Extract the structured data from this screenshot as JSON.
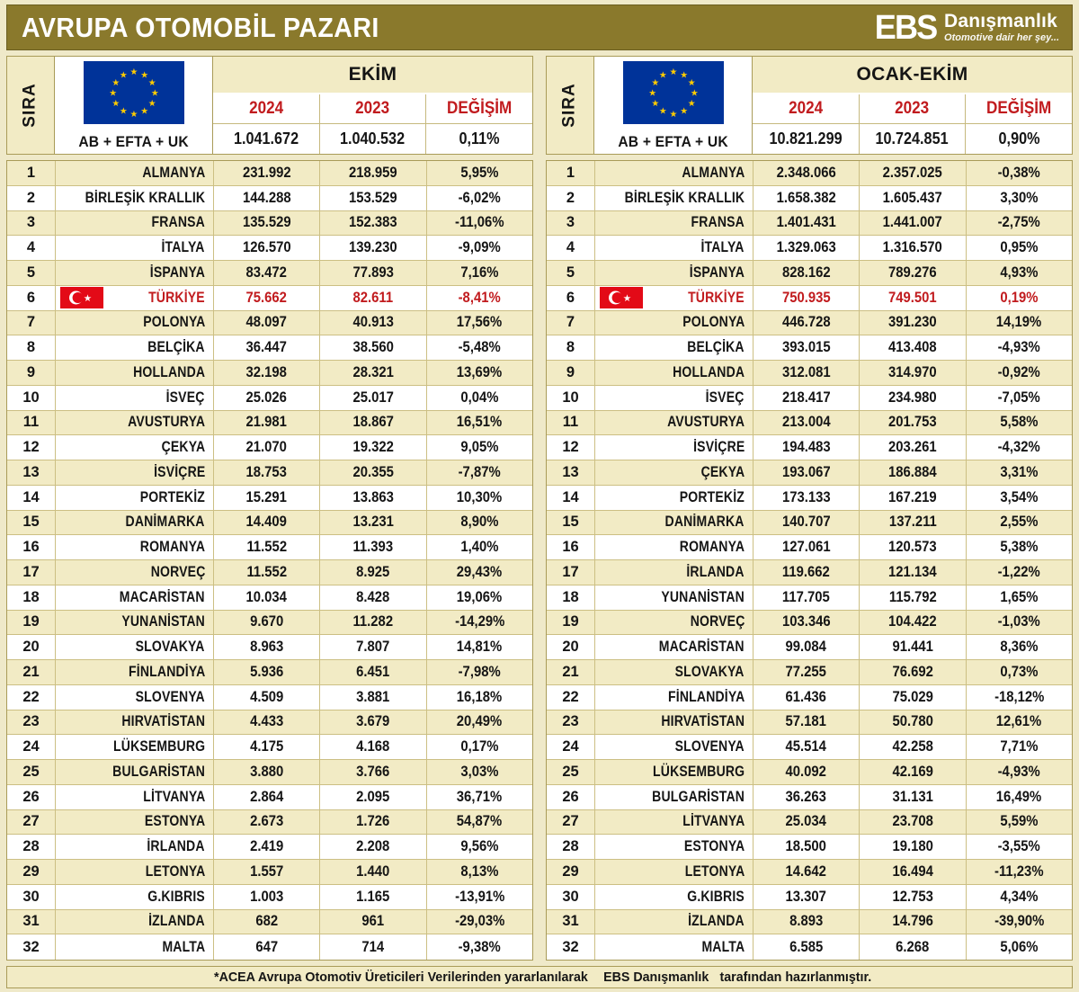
{
  "title": "AVRUPA OTOMOBİL PAZARI",
  "logo": {
    "ebs": "EBS",
    "name": "Danışmanlık",
    "tagline": "Otomotive dair her şey..."
  },
  "colors": {
    "olive": "#8A792C",
    "cream": "#F2EBC5",
    "highlight_red": "#C11B1E",
    "eu_blue": "#003399",
    "turkey_red": "#E30A17"
  },
  "footer": {
    "prefix": "*ACEA Avrupa Otomotiv Üreticileri Verilerinden yararlanılarak ",
    "brand": "EBS Danışmanlık",
    "suffix": " tarafından hazırlanmıştır."
  },
  "chart_data": [
    {
      "type": "table",
      "period_label": "EKİM",
      "sira_label": "SIRA",
      "region_label": "AB + EFTA + UK",
      "col_2024": "2024",
      "col_2023": "2023",
      "col_change": "DEĞİŞİM",
      "totals": {
        "v2024": "1.041.672",
        "v2023": "1.040.532",
        "change": "0,11%"
      },
      "rows": [
        {
          "rank": "1",
          "country": "ALMANYA",
          "v2024": "231.992",
          "v2023": "218.959",
          "change": "5,95%"
        },
        {
          "rank": "2",
          "country": "BİRLEŞİK KRALLIK",
          "v2024": "144.288",
          "v2023": "153.529",
          "change": "-6,02%"
        },
        {
          "rank": "3",
          "country": "FRANSA",
          "v2024": "135.529",
          "v2023": "152.383",
          "change": "-11,06%"
        },
        {
          "rank": "4",
          "country": "İTALYA",
          "v2024": "126.570",
          "v2023": "139.230",
          "change": "-9,09%"
        },
        {
          "rank": "5",
          "country": "İSPANYA",
          "v2024": "83.472",
          "v2023": "77.893",
          "change": "7,16%"
        },
        {
          "rank": "6",
          "country": "TÜRKİYE",
          "v2024": "75.662",
          "v2023": "82.611",
          "change": "-8,41%",
          "highlight": true
        },
        {
          "rank": "7",
          "country": "POLONYA",
          "v2024": "48.097",
          "v2023": "40.913",
          "change": "17,56%"
        },
        {
          "rank": "8",
          "country": "BELÇİKA",
          "v2024": "36.447",
          "v2023": "38.560",
          "change": "-5,48%"
        },
        {
          "rank": "9",
          "country": "HOLLANDA",
          "v2024": "32.198",
          "v2023": "28.321",
          "change": "13,69%"
        },
        {
          "rank": "10",
          "country": "İSVEÇ",
          "v2024": "25.026",
          "v2023": "25.017",
          "change": "0,04%"
        },
        {
          "rank": "11",
          "country": "AVUSTURYA",
          "v2024": "21.981",
          "v2023": "18.867",
          "change": "16,51%"
        },
        {
          "rank": "12",
          "country": "ÇEKYA",
          "v2024": "21.070",
          "v2023": "19.322",
          "change": "9,05%"
        },
        {
          "rank": "13",
          "country": "İSVİÇRE",
          "v2024": "18.753",
          "v2023": "20.355",
          "change": "-7,87%"
        },
        {
          "rank": "14",
          "country": "PORTEKİZ",
          "v2024": "15.291",
          "v2023": "13.863",
          "change": "10,30%"
        },
        {
          "rank": "15",
          "country": "DANİMARKA",
          "v2024": "14.409",
          "v2023": "13.231",
          "change": "8,90%"
        },
        {
          "rank": "16",
          "country": "ROMANYA",
          "v2024": "11.552",
          "v2023": "11.393",
          "change": "1,40%"
        },
        {
          "rank": "17",
          "country": "NORVEÇ",
          "v2024": "11.552",
          "v2023": "8.925",
          "change": "29,43%"
        },
        {
          "rank": "18",
          "country": "MACARİSTAN",
          "v2024": "10.034",
          "v2023": "8.428",
          "change": "19,06%"
        },
        {
          "rank": "19",
          "country": "YUNANİSTAN",
          "v2024": "9.670",
          "v2023": "11.282",
          "change": "-14,29%"
        },
        {
          "rank": "20",
          "country": "SLOVAKYA",
          "v2024": "8.963",
          "v2023": "7.807",
          "change": "14,81%"
        },
        {
          "rank": "21",
          "country": "FİNLANDİYA",
          "v2024": "5.936",
          "v2023": "6.451",
          "change": "-7,98%"
        },
        {
          "rank": "22",
          "country": "SLOVENYA",
          "v2024": "4.509",
          "v2023": "3.881",
          "change": "16,18%"
        },
        {
          "rank": "23",
          "country": "HIRVATİSTAN",
          "v2024": "4.433",
          "v2023": "3.679",
          "change": "20,49%"
        },
        {
          "rank": "24",
          "country": "LÜKSEMBURG",
          "v2024": "4.175",
          "v2023": "4.168",
          "change": "0,17%"
        },
        {
          "rank": "25",
          "country": "BULGARİSTAN",
          "v2024": "3.880",
          "v2023": "3.766",
          "change": "3,03%"
        },
        {
          "rank": "26",
          "country": "LİTVANYA",
          "v2024": "2.864",
          "v2023": "2.095",
          "change": "36,71%"
        },
        {
          "rank": "27",
          "country": "ESTONYA",
          "v2024": "2.673",
          "v2023": "1.726",
          "change": "54,87%"
        },
        {
          "rank": "28",
          "country": "İRLANDA",
          "v2024": "2.419",
          "v2023": "2.208",
          "change": "9,56%"
        },
        {
          "rank": "29",
          "country": "LETONYA",
          "v2024": "1.557",
          "v2023": "1.440",
          "change": "8,13%"
        },
        {
          "rank": "30",
          "country": "G.KIBRIS",
          "v2024": "1.003",
          "v2023": "1.165",
          "change": "-13,91%"
        },
        {
          "rank": "31",
          "country": "İZLANDA",
          "v2024": "682",
          "v2023": "961",
          "change": "-29,03%"
        },
        {
          "rank": "32",
          "country": "MALTA",
          "v2024": "647",
          "v2023": "714",
          "change": "-9,38%"
        }
      ]
    },
    {
      "type": "table",
      "period_label": "OCAK-EKİM",
      "sira_label": "SIRA",
      "region_label": "AB + EFTA + UK",
      "col_2024": "2024",
      "col_2023": "2023",
      "col_change": "DEĞİŞİM",
      "totals": {
        "v2024": "10.821.299",
        "v2023": "10.724.851",
        "change": "0,90%"
      },
      "rows": [
        {
          "rank": "1",
          "country": "ALMANYA",
          "v2024": "2.348.066",
          "v2023": "2.357.025",
          "change": "-0,38%"
        },
        {
          "rank": "2",
          "country": "BİRLEŞİK KRALLIK",
          "v2024": "1.658.382",
          "v2023": "1.605.437",
          "change": "3,30%"
        },
        {
          "rank": "3",
          "country": "FRANSA",
          "v2024": "1.401.431",
          "v2023": "1.441.007",
          "change": "-2,75%"
        },
        {
          "rank": "4",
          "country": "İTALYA",
          "v2024": "1.329.063",
          "v2023": "1.316.570",
          "change": "0,95%"
        },
        {
          "rank": "5",
          "country": "İSPANYA",
          "v2024": "828.162",
          "v2023": "789.276",
          "change": "4,93%"
        },
        {
          "rank": "6",
          "country": "TÜRKİYE",
          "v2024": "750.935",
          "v2023": "749.501",
          "change": "0,19%",
          "highlight": true
        },
        {
          "rank": "7",
          "country": "POLONYA",
          "v2024": "446.728",
          "v2023": "391.230",
          "change": "14,19%"
        },
        {
          "rank": "8",
          "country": "BELÇİKA",
          "v2024": "393.015",
          "v2023": "413.408",
          "change": "-4,93%"
        },
        {
          "rank": "9",
          "country": "HOLLANDA",
          "v2024": "312.081",
          "v2023": "314.970",
          "change": "-0,92%"
        },
        {
          "rank": "10",
          "country": "İSVEÇ",
          "v2024": "218.417",
          "v2023": "234.980",
          "change": "-7,05%"
        },
        {
          "rank": "11",
          "country": "AVUSTURYA",
          "v2024": "213.004",
          "v2023": "201.753",
          "change": "5,58%"
        },
        {
          "rank": "12",
          "country": "İSVİÇRE",
          "v2024": "194.483",
          "v2023": "203.261",
          "change": "-4,32%"
        },
        {
          "rank": "13",
          "country": "ÇEKYA",
          "v2024": "193.067",
          "v2023": "186.884",
          "change": "3,31%"
        },
        {
          "rank": "14",
          "country": "PORTEKİZ",
          "v2024": "173.133",
          "v2023": "167.219",
          "change": "3,54%"
        },
        {
          "rank": "15",
          "country": "DANİMARKA",
          "v2024": "140.707",
          "v2023": "137.211",
          "change": "2,55%"
        },
        {
          "rank": "16",
          "country": "ROMANYA",
          "v2024": "127.061",
          "v2023": "120.573",
          "change": "5,38%"
        },
        {
          "rank": "17",
          "country": "İRLANDA",
          "v2024": "119.662",
          "v2023": "121.134",
          "change": "-1,22%"
        },
        {
          "rank": "18",
          "country": "YUNANİSTAN",
          "v2024": "117.705",
          "v2023": "115.792",
          "change": "1,65%"
        },
        {
          "rank": "19",
          "country": "NORVEÇ",
          "v2024": "103.346",
          "v2023": "104.422",
          "change": "-1,03%"
        },
        {
          "rank": "20",
          "country": "MACARİSTAN",
          "v2024": "99.084",
          "v2023": "91.441",
          "change": "8,36%"
        },
        {
          "rank": "21",
          "country": "SLOVAKYA",
          "v2024": "77.255",
          "v2023": "76.692",
          "change": "0,73%"
        },
        {
          "rank": "22",
          "country": "FİNLANDİYA",
          "v2024": "61.436",
          "v2023": "75.029",
          "change": "-18,12%"
        },
        {
          "rank": "23",
          "country": "HIRVATİSTAN",
          "v2024": "57.181",
          "v2023": "50.780",
          "change": "12,61%"
        },
        {
          "rank": "24",
          "country": "SLOVENYA",
          "v2024": "45.514",
          "v2023": "42.258",
          "change": "7,71%"
        },
        {
          "rank": "25",
          "country": "LÜKSEMBURG",
          "v2024": "40.092",
          "v2023": "42.169",
          "change": "-4,93%"
        },
        {
          "rank": "26",
          "country": "BULGARİSTAN",
          "v2024": "36.263",
          "v2023": "31.131",
          "change": "16,49%"
        },
        {
          "rank": "27",
          "country": "LİTVANYA",
          "v2024": "25.034",
          "v2023": "23.708",
          "change": "5,59%"
        },
        {
          "rank": "28",
          "country": "ESTONYA",
          "v2024": "18.500",
          "v2023": "19.180",
          "change": "-3,55%"
        },
        {
          "rank": "29",
          "country": "LETONYA",
          "v2024": "14.642",
          "v2023": "16.494",
          "change": "-11,23%"
        },
        {
          "rank": "30",
          "country": "G.KIBRIS",
          "v2024": "13.307",
          "v2023": "12.753",
          "change": "4,34%"
        },
        {
          "rank": "31",
          "country": "İZLANDA",
          "v2024": "8.893",
          "v2023": "14.796",
          "change": "-39,90%"
        },
        {
          "rank": "32",
          "country": "MALTA",
          "v2024": "6.585",
          "v2023": "6.268",
          "change": "5,06%"
        }
      ]
    }
  ]
}
